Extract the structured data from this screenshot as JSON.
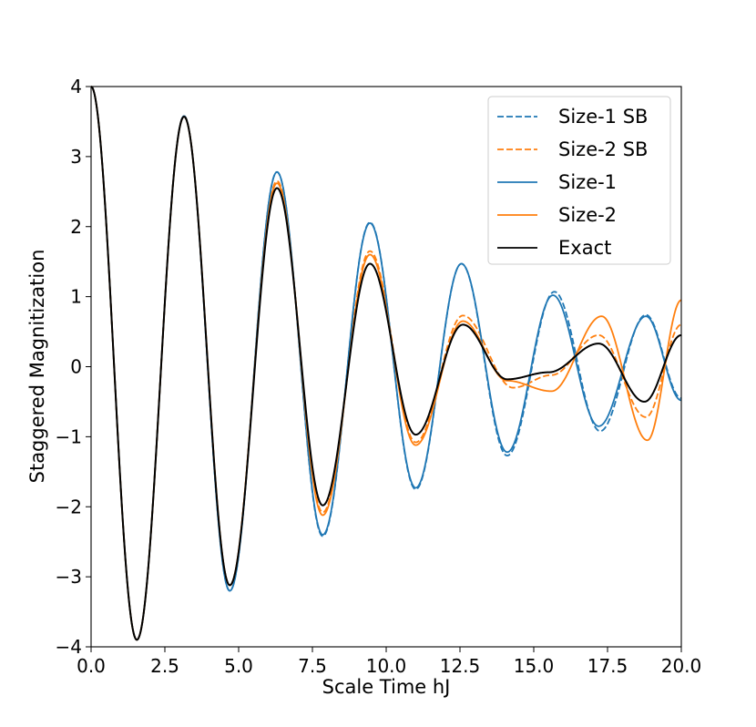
{
  "chart_data": {
    "type": "line",
    "title": "",
    "xlabel": "Scale Time hJ",
    "ylabel": "Staggered Magnitization",
    "xlim": [
      0,
      20
    ],
    "ylim": [
      -4,
      4
    ],
    "xticks": [
      0,
      2.5,
      5,
      7.5,
      10,
      12.5,
      15,
      17.5,
      20
    ],
    "xtick_labels": [
      "0.0",
      "2.5",
      "5.0",
      "7.5",
      "10.0",
      "12.5",
      "15.0",
      "17.5",
      "20.0"
    ],
    "yticks": [
      -4,
      -3,
      -2,
      -1,
      0,
      1,
      2,
      3,
      4
    ],
    "ytick_labels": [
      "−4",
      "−3",
      "−2",
      "−1",
      "0",
      "1",
      "2",
      "3",
      "4"
    ],
    "grid": false,
    "legend_position": "top-right",
    "colors": {
      "blue": "#1f77b4",
      "orange": "#ff7f0e",
      "black": "#000000"
    },
    "series": [
      {
        "name": "Size-1 SB",
        "color": "#1f77b4",
        "dash": true,
        "x": [
          0,
          1.55,
          3.15,
          4.7,
          6.3,
          7.85,
          9.45,
          11.0,
          12.55,
          14.1,
          15.7,
          17.25,
          18.8,
          20.0
        ],
        "y": [
          4,
          -3.9,
          3.58,
          -3.2,
          2.78,
          -2.42,
          2.06,
          -1.75,
          1.47,
          -1.27,
          1.07,
          -0.92,
          0.74,
          -0.45
        ]
      },
      {
        "name": "Size-2 SB",
        "color": "#ff7f0e",
        "dash": true,
        "x": [
          0,
          1.55,
          3.15,
          4.7,
          6.3,
          7.85,
          9.45,
          11.0,
          12.6,
          14.3,
          15.6,
          17.2,
          18.8,
          20.0
        ],
        "y": [
          4,
          -3.9,
          3.58,
          -3.12,
          2.65,
          -2.08,
          1.65,
          -1.08,
          0.73,
          -0.3,
          -0.12,
          0.45,
          -0.72,
          0.6
        ]
      },
      {
        "name": "Size-1",
        "color": "#1f77b4",
        "dash": false,
        "x": [
          0,
          1.55,
          3.15,
          4.7,
          6.3,
          7.85,
          9.45,
          11.0,
          12.55,
          14.1,
          15.65,
          17.2,
          18.8,
          20.0
        ],
        "y": [
          4,
          -3.9,
          3.58,
          -3.2,
          2.78,
          -2.4,
          2.05,
          -1.73,
          1.47,
          -1.22,
          1.02,
          -0.85,
          0.72,
          -0.48
        ]
      },
      {
        "name": "Size-2",
        "color": "#ff7f0e",
        "dash": false,
        "x": [
          0,
          1.55,
          3.15,
          4.7,
          6.3,
          7.85,
          9.45,
          11.0,
          12.6,
          14.1,
          15.6,
          17.3,
          18.85,
          20.0
        ],
        "y": [
          4,
          -3.9,
          3.57,
          -3.12,
          2.62,
          -2.12,
          1.6,
          -1.12,
          0.65,
          -0.2,
          -0.35,
          0.72,
          -1.05,
          0.95
        ]
      },
      {
        "name": "Exact",
        "color": "#000000",
        "dash": false,
        "x": [
          0,
          1.55,
          3.15,
          4.7,
          6.3,
          7.85,
          9.45,
          11.0,
          12.6,
          14.1,
          15.5,
          17.2,
          18.75,
          20.0
        ],
        "y": [
          4,
          -3.9,
          3.57,
          -3.12,
          2.55,
          -1.98,
          1.47,
          -0.97,
          0.6,
          -0.18,
          -0.08,
          0.33,
          -0.5,
          0.45
        ]
      }
    ]
  }
}
